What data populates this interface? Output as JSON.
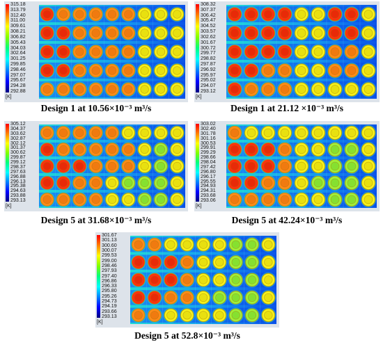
{
  "units": "[K]",
  "panels": [
    {
      "caption": "Design 1 at 10.56×10⁻³ m³/s",
      "ticks": [
        "315.18",
        "313.79",
        "312.40",
        "311.00",
        "309.61",
        "308.21",
        "306.82",
        "305.43",
        "304.03",
        "302.64",
        "301.25",
        "299.85",
        "298.46",
        "297.07",
        "295.67",
        "294.28",
        "292.88"
      ]
    },
    {
      "caption": "Design 1 at 21.12 ×10⁻³ m³/s",
      "ticks": [
        "308.32",
        "307.37",
        "306.42",
        "305.47",
        "304.52",
        "303.57",
        "302.62",
        "301.67",
        "300.72",
        "299.77",
        "298.82",
        "297.87",
        "296.92",
        "295.97",
        "295.02",
        "294.07",
        "293.12"
      ]
    },
    {
      "caption": "Design 5 at 31.68×10⁻³ m³/s",
      "ticks": [
        "305.12",
        "304.37",
        "303.62",
        "302.87",
        "302.12",
        "301.37",
        "300.62",
        "299.87",
        "299.12",
        "298.37",
        "297.63",
        "296.88",
        "296.13",
        "295.38",
        "294.63",
        "293.88",
        "293.13"
      ]
    },
    {
      "caption": "Design 5 at 42.24×10⁻³ m³/s",
      "ticks": [
        "303.02",
        "302.40",
        "301.78",
        "301.16",
        "300.53",
        "299.91",
        "299.29",
        "298.66",
        "298.04",
        "297.42",
        "296.80",
        "296.17",
        "295.55",
        "294.93",
        "294.31",
        "293.68",
        "293.06"
      ]
    },
    {
      "caption": "Design 5 at 52.8×10⁻³ m³/s",
      "ticks": [
        "301.67",
        "301.13",
        "300.60",
        "300.07",
        "299.53",
        "299.00",
        "298.46",
        "297.93",
        "297.40",
        "296.86",
        "296.33",
        "295.80",
        "295.26",
        "294.73",
        "294.19",
        "293.66",
        "293.13"
      ]
    }
  ]
}
